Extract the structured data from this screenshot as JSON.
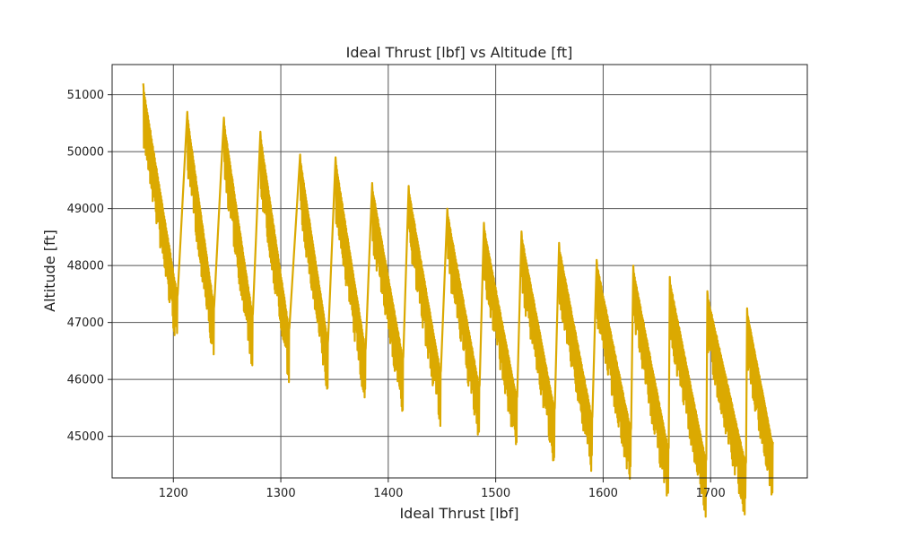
{
  "chart_data": {
    "type": "line",
    "title": "Ideal Thrust [lbf] vs Altitude [ft]",
    "xlabel": "Ideal Thrust [lbf]",
    "ylabel": "Altitude [ft]",
    "xlim": [
      1143,
      1790
    ],
    "ylim": [
      44270,
      51530
    ],
    "xticks": [
      1200,
      1300,
      1400,
      1500,
      1600,
      1700
    ],
    "yticks": [
      45000,
      46000,
      47000,
      48000,
      49000,
      50000,
      51000
    ],
    "grid": true,
    "color": "#DBA901",
    "sawtooth_cycles": [
      {
        "start": [
          1172,
          51200
        ],
        "end": [
          1204,
          47500
        ]
      },
      {
        "start": [
          1213,
          50700
        ],
        "end": [
          1238,
          47300
        ]
      },
      {
        "start": [
          1247,
          50600
        ],
        "end": [
          1274,
          47150
        ]
      },
      {
        "start": [
          1281,
          50350
        ],
        "end": [
          1308,
          46900
        ]
      },
      {
        "start": [
          1318,
          49950
        ],
        "end": [
          1344,
          46700
        ]
      },
      {
        "start": [
          1351,
          49900
        ],
        "end": [
          1379,
          46550
        ]
      },
      {
        "start": [
          1385,
          49450
        ],
        "end": [
          1414,
          46400
        ]
      },
      {
        "start": [
          1419,
          49400
        ],
        "end": [
          1449,
          46150
        ]
      },
      {
        "start": [
          1455,
          49000
        ],
        "end": [
          1485,
          45900
        ]
      },
      {
        "start": [
          1489,
          48750
        ],
        "end": [
          1520,
          45700
        ]
      },
      {
        "start": [
          1524,
          48600
        ],
        "end": [
          1555,
          45500
        ]
      },
      {
        "start": [
          1559,
          48400
        ],
        "end": [
          1590,
          45350
        ]
      },
      {
        "start": [
          1594,
          48100
        ],
        "end": [
          1626,
          45150
        ]
      },
      {
        "start": [
          1628,
          48000
        ],
        "end": [
          1661,
          44800
        ]
      },
      {
        "start": [
          1662,
          47800
        ],
        "end": [
          1696,
          44600
        ]
      },
      {
        "start": [
          1697,
          47550
        ],
        "end": [
          1733,
          44550
        ]
      },
      {
        "start": [
          1734,
          47250
        ],
        "end": [
          1758,
          44900
        ]
      }
    ]
  }
}
